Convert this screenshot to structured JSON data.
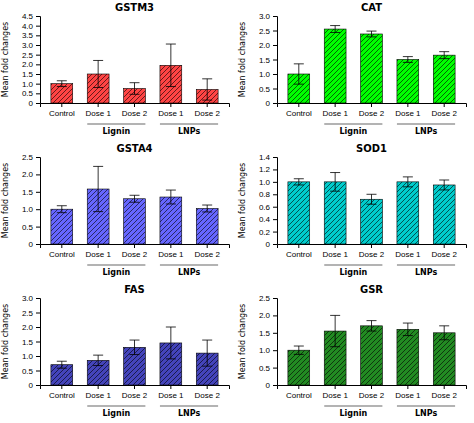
{
  "chart_data": [
    {
      "type": "bar",
      "title": "GSTM3",
      "ylabel": "Mean fold changes",
      "color": "#FF4444",
      "categories": [
        "Control",
        "Dose 1",
        "Dose 2",
        "Dose 1",
        "Dose 2"
      ],
      "annotations": [
        "Lignin",
        "LNPs"
      ],
      "values": [
        1.0,
        1.5,
        0.75,
        1.95,
        0.7
      ],
      "errors": [
        0.15,
        0.7,
        0.3,
        1.1,
        0.55
      ],
      "ylim": [
        0,
        4.5
      ],
      "yticks": [
        0,
        0.5,
        {
          "value": 1.0,
          "label": "1.0"
        },
        1.5,
        {
          "value": 2.0,
          "label": "2.0"
        },
        2.5,
        {
          "value": 3.0,
          "label": "3.0"
        },
        3.5,
        {
          "value": 4.0,
          "label": "4.0"
        },
        4.5
      ]
    },
    {
      "type": "bar",
      "title": "CAT",
      "ylabel": "Mean fold changes",
      "color": "#00FF00",
      "categories": [
        "Control",
        "Dose 1",
        "Dose 2",
        "Dose 1",
        "Dose 2"
      ],
      "annotations": [
        "Lignin",
        "LNPs"
      ],
      "values": [
        1.0,
        2.55,
        2.38,
        1.5,
        1.65
      ],
      "errors": [
        0.35,
        0.12,
        0.1,
        0.1,
        0.12
      ],
      "ylim": [
        0,
        3.0
      ],
      "yticks": [
        0,
        0.5,
        {
          "value": 1.0,
          "label": "1.0"
        },
        1.5,
        {
          "value": 2.0,
          "label": "2.0"
        },
        2.5,
        {
          "value": 3.0,
          "label": "3.0"
        }
      ]
    },
    {
      "type": "bar",
      "title": "GSTA4",
      "ylabel": "Mean fold changes",
      "color": "#6666FF",
      "categories": [
        "Control",
        "Dose 1",
        "Dose 2",
        "Dose 1",
        "Dose 2"
      ],
      "annotations": [
        "Lignin",
        "LNPs"
      ],
      "values": [
        1.0,
        1.58,
        1.3,
        1.35,
        1.02
      ],
      "errors": [
        0.1,
        0.65,
        0.1,
        0.2,
        0.1
      ],
      "ylim": [
        0,
        2.5
      ],
      "yticks": [
        0,
        0.5,
        {
          "value": 1.0,
          "label": "1.0"
        },
        1.5,
        {
          "value": 2.0,
          "label": "2.0"
        },
        2.5
      ]
    },
    {
      "type": "bar",
      "title": "SOD1",
      "ylabel": "Mean fold changes",
      "color": "#00CCCC",
      "categories": [
        "Control",
        "Dose 1",
        "Dose 2",
        "Dose 1",
        "Dose 2"
      ],
      "annotations": [
        "Lignin",
        "LNPs"
      ],
      "values": [
        1.0,
        1.0,
        0.72,
        1.0,
        0.95
      ],
      "errors": [
        0.05,
        0.15,
        0.08,
        0.08,
        0.08
      ],
      "ylim": [
        0,
        1.4
      ],
      "yticks": [
        0,
        0.2,
        0.4,
        0.6,
        0.8,
        {
          "value": 1.0,
          "label": "1.0"
        },
        1.2,
        1.4
      ]
    },
    {
      "type": "bar",
      "title": "FAS",
      "ylabel": "Mean fold changes",
      "color": "#4444BB",
      "categories": [
        "Control",
        "Dose 1",
        "Dose 2",
        "Dose 1",
        "Dose 2"
      ],
      "annotations": [
        "Lignin",
        "LNPs"
      ],
      "values": [
        0.7,
        0.85,
        1.3,
        1.45,
        1.1
      ],
      "errors": [
        0.12,
        0.18,
        0.25,
        0.55,
        0.45
      ],
      "ylim": [
        0,
        3.0
      ],
      "yticks": [
        0,
        0.5,
        {
          "value": 1.0,
          "label": "1.0"
        },
        1.5,
        {
          "value": 2.0,
          "label": "2.0"
        },
        2.5,
        {
          "value": 3.0,
          "label": "3.0"
        }
      ]
    },
    {
      "type": "bar",
      "title": "GSR",
      "ylabel": "Mean fold changes",
      "color": "#228B22",
      "categories": [
        "Control",
        "Dose 1",
        "Dose 2",
        "Dose 1",
        "Dose 2"
      ],
      "annotations": [
        "Lignin",
        "LNPs"
      ],
      "values": [
        1.0,
        1.55,
        1.7,
        1.6,
        1.5
      ],
      "errors": [
        0.12,
        0.45,
        0.15,
        0.18,
        0.2
      ],
      "ylim": [
        0,
        2.5
      ],
      "yticks": [
        0,
        0.5,
        {
          "value": 1.0,
          "label": "1.0"
        },
        1.5,
        {
          "value": 2.0,
          "label": "2.0"
        },
        2.5
      ]
    }
  ]
}
